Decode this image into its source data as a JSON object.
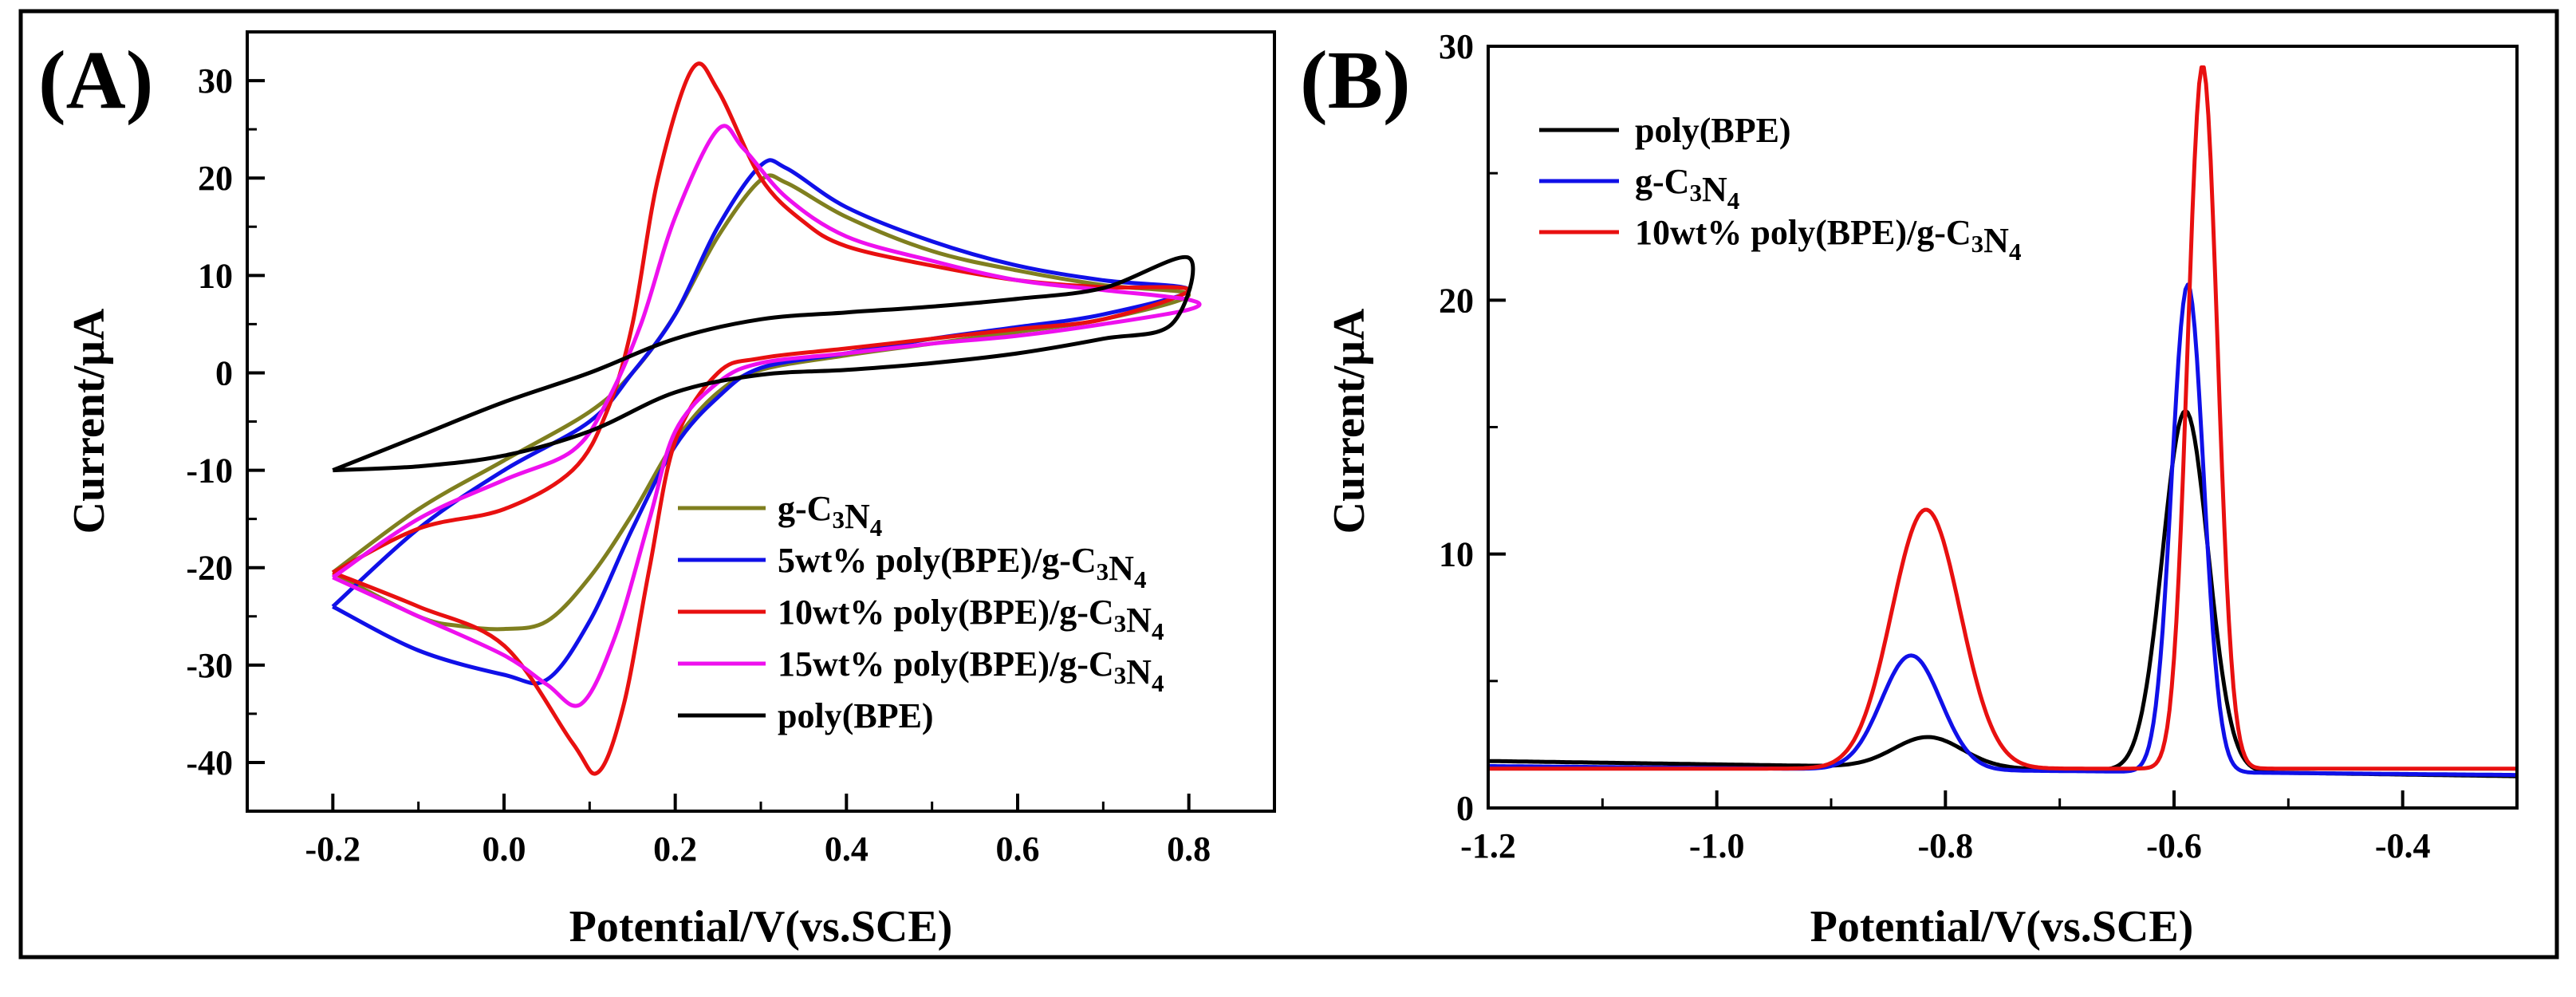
{
  "chart_data": [
    {
      "panel_label": "(A)",
      "type": "line",
      "title": "",
      "xlabel": "Potential/V(vs.SCE)",
      "ylabel": "Current/μA",
      "xlim": [
        -0.3,
        0.9
      ],
      "ylim": [
        -45,
        35
      ],
      "xticks": [
        -0.2,
        0.0,
        0.2,
        0.4,
        0.6,
        0.8
      ],
      "xtick_labels": [
        "-0.2",
        "0.0",
        "0.2",
        "0.4",
        "0.6",
        "0.8"
      ],
      "yticks": [
        -40,
        -30,
        -20,
        -10,
        0,
        10,
        20,
        30
      ],
      "ytick_labels": [
        "-40",
        "-30",
        "-20",
        "-10",
        "0",
        "10",
        "20",
        "30"
      ],
      "legend_position": "bottom-right",
      "series": [
        {
          "name": "g-C3N4",
          "legend": {
            "pre": "g-C",
            "sub1": "3",
            "mid": "N",
            "sub2": "4",
            "post": ""
          },
          "color": "#7f7f1f",
          "points": [
            [
              -0.2,
              -20.5
            ],
            [
              -0.1,
              -14
            ],
            [
              0.0,
              -9
            ],
            [
              0.1,
              -4
            ],
            [
              0.15,
              0
            ],
            [
              0.2,
              6
            ],
            [
              0.25,
              14
            ],
            [
              0.3,
              19.8
            ],
            [
              0.33,
              19.5
            ],
            [
              0.4,
              16
            ],
            [
              0.5,
              12.5
            ],
            [
              0.6,
              10.5
            ],
            [
              0.7,
              9
            ],
            [
              0.8,
              8
            ],
            [
              0.7,
              5.5
            ],
            [
              0.6,
              4.2
            ],
            [
              0.5,
              3
            ],
            [
              0.4,
              1.8
            ],
            [
              0.3,
              0.3
            ],
            [
              0.25,
              -2
            ],
            [
              0.2,
              -7
            ],
            [
              0.15,
              -14.5
            ],
            [
              0.1,
              -21
            ],
            [
              0.05,
              -25.5
            ],
            [
              0.0,
              -26.3
            ],
            [
              -0.05,
              -26
            ],
            [
              -0.1,
              -25
            ],
            [
              -0.2,
              -20.5
            ]
          ]
        },
        {
          "name": "5wt% poly(BPE)/g-C3N4",
          "legend": {
            "pre": "5wt% poly(BPE)/g-C",
            "sub1": "3",
            "mid": "N",
            "sub2": "4",
            "post": ""
          },
          "color": "#1010e8",
          "points": [
            [
              -0.2,
              -24
            ],
            [
              -0.1,
              -16
            ],
            [
              0.0,
              -10
            ],
            [
              0.1,
              -5
            ],
            [
              0.15,
              0
            ],
            [
              0.2,
              6
            ],
            [
              0.25,
              15
            ],
            [
              0.3,
              21.3
            ],
            [
              0.33,
              21
            ],
            [
              0.4,
              17
            ],
            [
              0.5,
              13.5
            ],
            [
              0.6,
              11
            ],
            [
              0.7,
              9.5
            ],
            [
              0.8,
              8.5
            ],
            [
              0.7,
              6
            ],
            [
              0.6,
              4.7
            ],
            [
              0.5,
              3.5
            ],
            [
              0.4,
              2
            ],
            [
              0.3,
              0.5
            ],
            [
              0.25,
              -2.5
            ],
            [
              0.2,
              -7.5
            ],
            [
              0.15,
              -16
            ],
            [
              0.1,
              -25.5
            ],
            [
              0.05,
              -31.5
            ],
            [
              0.0,
              -31
            ],
            [
              -0.1,
              -28.5
            ],
            [
              -0.2,
              -24
            ]
          ]
        },
        {
          "name": "10wt% poly(BPE)/g-C3N4",
          "legend": {
            "pre": "10wt% poly(BPE)/g-C",
            "sub1": "3",
            "mid": "N",
            "sub2": "4",
            "post": ""
          },
          "color": "#e81010",
          "points": [
            [
              -0.2,
              -20.5
            ],
            [
              -0.1,
              -16
            ],
            [
              0.0,
              -14
            ],
            [
              0.08,
              -10
            ],
            [
              0.12,
              -4
            ],
            [
              0.15,
              5
            ],
            [
              0.18,
              20
            ],
            [
              0.22,
              31.2
            ],
            [
              0.25,
              29
            ],
            [
              0.3,
              20
            ],
            [
              0.35,
              15.5
            ],
            [
              0.4,
              13
            ],
            [
              0.5,
              11
            ],
            [
              0.6,
              9.5
            ],
            [
              0.7,
              8.8
            ],
            [
              0.8,
              8.5
            ],
            [
              0.7,
              5.5
            ],
            [
              0.6,
              4.5
            ],
            [
              0.5,
              3.5
            ],
            [
              0.4,
              2.5
            ],
            [
              0.3,
              1.5
            ],
            [
              0.25,
              0
            ],
            [
              0.2,
              -7
            ],
            [
              0.17,
              -20
            ],
            [
              0.14,
              -34
            ],
            [
              0.11,
              -41
            ],
            [
              0.08,
              -38
            ],
            [
              0.0,
              -28
            ],
            [
              -0.1,
              -24
            ],
            [
              -0.2,
              -20.5
            ]
          ]
        },
        {
          "name": "15wt% poly(BPE)/g-C3N4",
          "legend": {
            "pre": "15wt% poly(BPE)/g-C",
            "sub1": "3",
            "mid": "N",
            "sub2": "4",
            "post": ""
          },
          "color": "#ee10ee",
          "points": [
            [
              -0.2,
              -21
            ],
            [
              -0.1,
              -15
            ],
            [
              0.0,
              -11
            ],
            [
              0.08,
              -8
            ],
            [
              0.12,
              -3
            ],
            [
              0.16,
              5
            ],
            [
              0.2,
              16
            ],
            [
              0.25,
              25
            ],
            [
              0.28,
              23
            ],
            [
              0.33,
              18
            ],
            [
              0.4,
              14
            ],
            [
              0.5,
              11.5
            ],
            [
              0.6,
              9.5
            ],
            [
              0.7,
              8.5
            ],
            [
              0.8,
              7.5
            ],
            [
              0.8,
              6.5
            ],
            [
              0.7,
              5
            ],
            [
              0.6,
              3.8
            ],
            [
              0.5,
              3
            ],
            [
              0.4,
              2
            ],
            [
              0.3,
              1
            ],
            [
              0.25,
              -1
            ],
            [
              0.2,
              -6
            ],
            [
              0.17,
              -15
            ],
            [
              0.13,
              -27
            ],
            [
              0.09,
              -34
            ],
            [
              0.05,
              -32
            ],
            [
              0.0,
              -29
            ],
            [
              -0.1,
              -25
            ],
            [
              -0.2,
              -21
            ]
          ]
        },
        {
          "name": "poly(BPE)",
          "legend": {
            "pre": "poly(BPE)",
            "sub1": "",
            "mid": "",
            "sub2": "",
            "post": ""
          },
          "color": "#000000",
          "points": [
            [
              -0.2,
              -10
            ],
            [
              -0.1,
              -6.5
            ],
            [
              0.0,
              -3
            ],
            [
              0.1,
              0
            ],
            [
              0.2,
              3.5
            ],
            [
              0.3,
              5.5
            ],
            [
              0.4,
              6.2
            ],
            [
              0.5,
              6.8
            ],
            [
              0.6,
              7.6
            ],
            [
              0.7,
              8.7
            ],
            [
              0.8,
              11.8
            ],
            [
              0.78,
              5
            ],
            [
              0.7,
              3.5
            ],
            [
              0.6,
              2
            ],
            [
              0.5,
              1
            ],
            [
              0.4,
              0.3
            ],
            [
              0.3,
              -0.2
            ],
            [
              0.2,
              -2
            ],
            [
              0.1,
              -6
            ],
            [
              0.0,
              -8.5
            ],
            [
              -0.1,
              -9.6
            ],
            [
              -0.2,
              -10
            ]
          ]
        }
      ]
    },
    {
      "panel_label": "(B)",
      "type": "line",
      "title": "",
      "xlabel": "Potential/V(vs.SCE)",
      "ylabel": "Current/μA",
      "xlim": [
        -1.2,
        -0.3
      ],
      "ylim": [
        0,
        30
      ],
      "xticks": [
        -1.2,
        -1.0,
        -0.8,
        -0.6,
        -0.4
      ],
      "xtick_labels": [
        "-1.2",
        "-1.0",
        "-0.8",
        "-0.6",
        "-0.4"
      ],
      "yticks": [
        0,
        10,
        20,
        30
      ],
      "ytick_labels": [
        "0",
        "10",
        "20",
        "30"
      ],
      "legend_position": "top-left",
      "series": [
        {
          "name": "poly(BPE)",
          "legend": {
            "pre": "poly(BPE)",
            "sub1": "",
            "mid": "",
            "sub2": "",
            "post": ""
          },
          "color": "#000000",
          "baseline": [
            1.85,
            1.25
          ],
          "peaks": [
            [
              -0.815,
              1.2,
              0.03
            ],
            [
              -0.59,
              14.2,
              0.02
            ]
          ]
        },
        {
          "name": "g-C3N4",
          "legend": {
            "pre": "g-C",
            "sub1": "3",
            "mid": "N",
            "sub2": "4",
            "post": ""
          },
          "color": "#1010e8",
          "baseline": [
            1.65,
            1.3
          ],
          "peaks": [
            [
              -0.83,
              4.5,
              0.026
            ],
            [
              -0.588,
              19.2,
              0.014
            ]
          ]
        },
        {
          "name": "10wt% poly(BPE)/g-C3N4",
          "legend": {
            "pre": "10wt% poly(BPE)/g-C",
            "sub1": "3",
            "mid": "N",
            "sub2": "4",
            "post": ""
          },
          "color": "#e81010",
          "baseline": [
            1.55,
            1.55
          ],
          "peaks": [
            [
              -0.817,
              10.2,
              0.03
            ],
            [
              -0.575,
              27.7,
              0.013
            ]
          ]
        }
      ]
    }
  ]
}
